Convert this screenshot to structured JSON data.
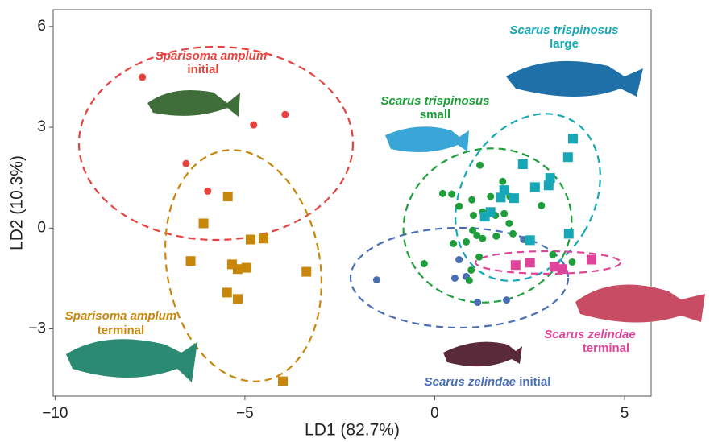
{
  "chart_data": {
    "type": "scatter",
    "x_label": "LD1 (82.7%)",
    "y_label": "LD2 (10.3%)",
    "xlim": [
      -10.05,
      5.7
    ],
    "ylim": [
      -5.0,
      6.5
    ],
    "xticks": [
      {
        "value": -10,
        "label": "−10"
      },
      {
        "value": -5,
        "label": "−5"
      },
      0,
      5
    ],
    "yticks": [
      {
        "value": -3,
        "label": "−3"
      },
      0,
      3,
      6
    ],
    "grid": false,
    "series": [
      {
        "name": "Sparisoma amplum",
        "stage": "initial",
        "color": "#e8423f",
        "marker": "circle",
        "x": [
          -7.7,
          -4.77,
          -3.94,
          -6.55,
          -5.98
        ],
        "values": [
          4.49,
          3.07,
          3.38,
          1.92,
          1.1
        ]
      },
      {
        "name": "Sparisoma amplum",
        "stage": "terminal",
        "color": "#c8860a",
        "marker": "square",
        "x": [
          -5.45,
          -6.09,
          -6.43,
          -4.85,
          -4.51,
          -5.34,
          -5.19,
          -4.96,
          -3.38,
          -5.47,
          -5.19,
          -4.0
        ],
        "values": [
          0.94,
          0.14,
          -0.98,
          -0.34,
          -0.31,
          -1.08,
          -1.22,
          -1.18,
          -1.3,
          -1.92,
          -2.11,
          -4.56
        ]
      },
      {
        "name": "Scarus zelindae",
        "stage": "initial",
        "color": "#4a6fb5",
        "marker": "circle",
        "x": [
          -1.53,
          0.64,
          0.53,
          0.83,
          1.13,
          1.89,
          2.34
        ],
        "values": [
          -1.54,
          -0.94,
          -1.49,
          -1.44,
          -2.21,
          -2.14,
          -0.34
        ]
      },
      {
        "name": "Scarus trispinosus",
        "stage": "small",
        "color": "#1e9e3a",
        "marker": "circle",
        "x": [
          1.19,
          0.21,
          0.45,
          0.98,
          1.47,
          1.98,
          1.79,
          2.81,
          1.02,
          1.26,
          1.6,
          1.83,
          1.96,
          1.0,
          1.11,
          1.26,
          1.62,
          2.06,
          0.49,
          0.83,
          1.17,
          0.96,
          0.91,
          -0.28,
          2.45,
          3.62,
          3.11,
          0.64
        ],
        "values": [
          1.87,
          1.03,
          1.01,
          0.84,
          0.94,
          0.94,
          1.39,
          0.67,
          0.38,
          0.48,
          0.38,
          0.43,
          0.14,
          -0.07,
          -0.22,
          -0.31,
          -0.24,
          -0.17,
          -0.46,
          -0.41,
          -0.86,
          -1.25,
          -1.56,
          -1.06,
          -0.38,
          -1.01,
          -0.79,
          0.65
        ]
      },
      {
        "name": "Scarus trispinosus",
        "stage": "large",
        "color": "#17a8b8",
        "marker": "square",
        "x": [
          3.64,
          3.51,
          3.04,
          3.0,
          2.32,
          2.64,
          1.83,
          2.09,
          1.74,
          1.47,
          1.32,
          3.53,
          2.51
        ],
        "values": [
          2.66,
          2.11,
          1.49,
          1.27,
          1.9,
          1.22,
          1.13,
          0.89,
          0.91,
          0.48,
          0.34,
          -0.17,
          -0.36
        ]
      },
      {
        "name": "Scarus zelindae",
        "stage": "terminal",
        "color": "#e0449a",
        "marker": "square",
        "x": [
          4.13,
          2.51,
          2.13,
          3.15,
          3.36
        ],
        "values": [
          -0.94,
          -1.03,
          -1.1,
          -1.15,
          -1.22
        ]
      }
    ]
  }
}
